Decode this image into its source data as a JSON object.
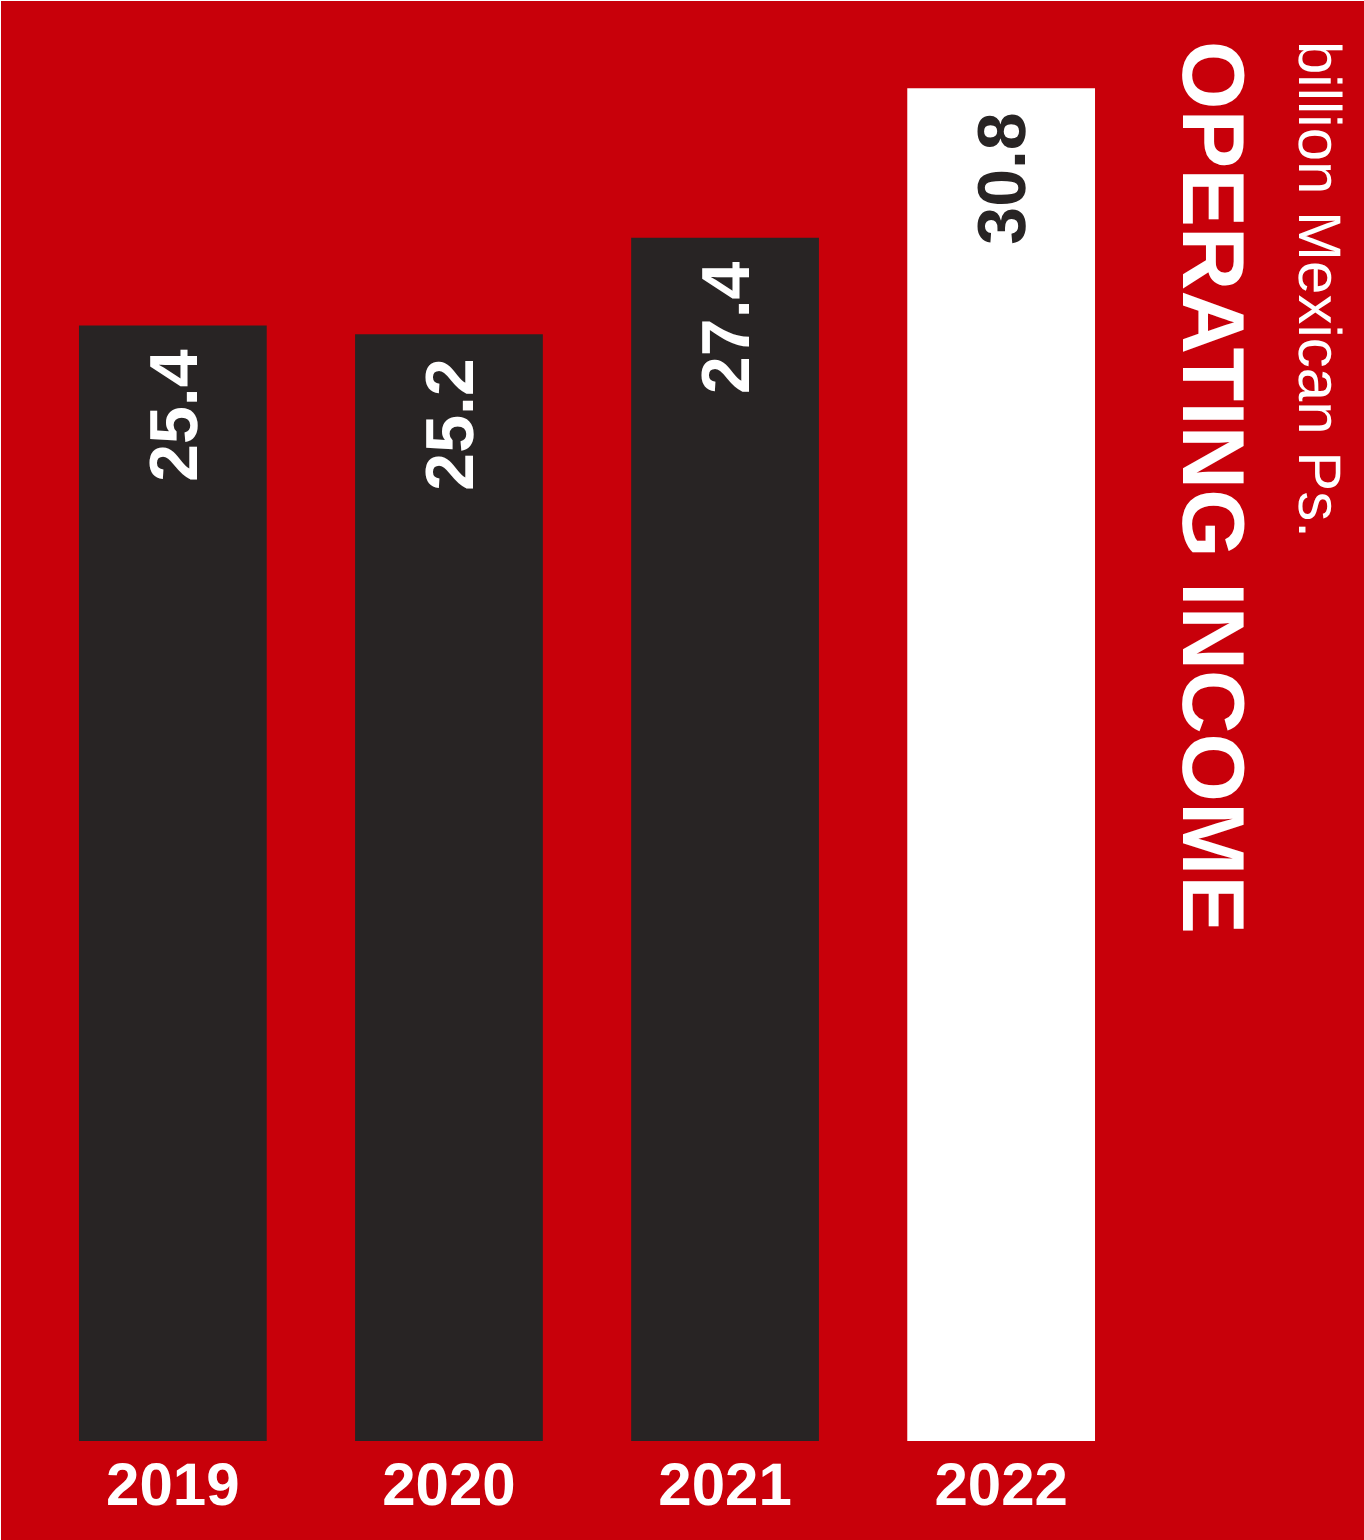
{
  "chart_data": {
    "type": "bar",
    "title": "OPERATING INCOME",
    "subtitle": "billion Mexican Ps.",
    "categories": [
      "2019",
      "2020",
      "2021",
      "2022"
    ],
    "values": [
      25.4,
      25.2,
      27.4,
      30.8
    ],
    "colors": [
      "#282424",
      "#282424",
      "#282424",
      "#ffffff"
    ],
    "data_labels": true,
    "grid": false,
    "tick_labels": "x"
  }
}
